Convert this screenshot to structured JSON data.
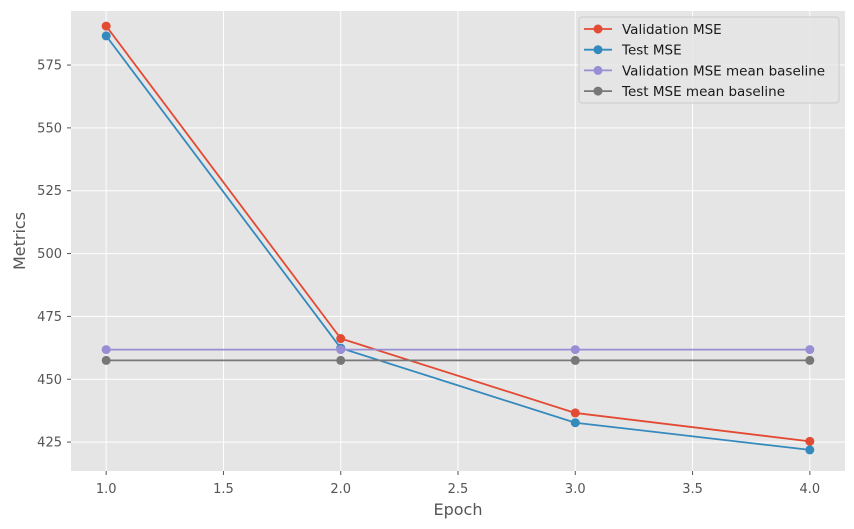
{
  "chart_data": {
    "type": "line",
    "title": "",
    "xlabel": "Epoch",
    "ylabel": "Metrics",
    "x": [
      1.0,
      2.0,
      3.0,
      4.0
    ],
    "xlim": [
      0.85,
      4.15
    ],
    "ylim": [
      413.5,
      596.5
    ],
    "xticks": [
      1.0,
      1.5,
      2.0,
      2.5,
      3.0,
      3.5,
      4.0
    ],
    "xtick_labels": [
      "1.0",
      "1.5",
      "2.0",
      "2.5",
      "3.0",
      "3.5",
      "4.0"
    ],
    "yticks": [
      425,
      450,
      475,
      500,
      525,
      550,
      575
    ],
    "ytick_labels": [
      "425",
      "450",
      "475",
      "500",
      "525",
      "550",
      "575"
    ],
    "grid": true,
    "legend_position": "top-right",
    "series": [
      {
        "name": "Validation MSE",
        "color": "#E24A33",
        "values": [
          590.5,
          466.2,
          436.6,
          425.3
        ]
      },
      {
        "name": "Test MSE",
        "color": "#348ABD",
        "values": [
          586.6,
          462.4,
          432.7,
          421.9
        ]
      },
      {
        "name": "Validation MSE mean baseline",
        "color": "#988ED5",
        "values": [
          461.8,
          461.8,
          461.8,
          461.8
        ]
      },
      {
        "name": "Test MSE mean baseline",
        "color": "#777777",
        "values": [
          457.5,
          457.5,
          457.5,
          457.5
        ]
      }
    ]
  }
}
